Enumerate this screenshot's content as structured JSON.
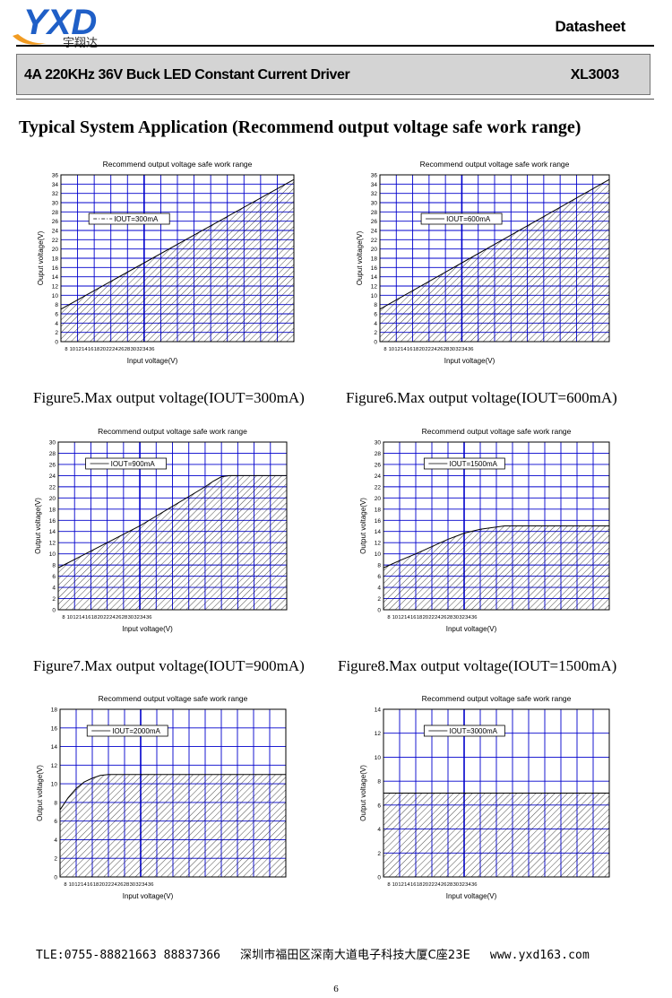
{
  "header": {
    "logo_text": "YXD",
    "logo_subtext": "宇翔达",
    "doc_label": "Datasheet",
    "product_title": "4A 220KHz 36V Buck LED Constant Current Driver",
    "part_number": "XL3003"
  },
  "section_title": "Typical System Application (Recommend output voltage safe work range)",
  "captions": [
    "Figure5.Max output voltage(IOUT=300mA)",
    "Figure6.Max output voltage(IOUT=600mA)",
    "Figure7.Max output voltage(IOUT=900mA)",
    "Figure8.Max output voltage(IOUT=1500mA)"
  ],
  "chart_data": [
    {
      "type": "area",
      "title": "Recommend output voltage safe work range",
      "xlabel": "Input voltage(V)",
      "ylabel": "Ouput voltage(V)",
      "legend": "IOUT=300mA",
      "legend_style": "dashdot",
      "legend_position": "top-left",
      "grid": true,
      "xlim": [
        8,
        36
      ],
      "ylim": [
        0,
        36
      ],
      "yticks_step": 2,
      "x": [
        8,
        36
      ],
      "y": [
        7,
        35
      ]
    },
    {
      "type": "area",
      "title": "Recommend output voltage safe work range",
      "xlabel": "Input voltage(V)",
      "ylabel": "Ouput voltage(V)",
      "legend": "IOUT=600mA",
      "legend_style": "solid",
      "legend_position": "top-center",
      "grid": true,
      "xlim": [
        8,
        36
      ],
      "ylim": [
        0,
        36
      ],
      "yticks_step": 2,
      "x": [
        8,
        36
      ],
      "y": [
        7,
        35
      ]
    },
    {
      "type": "area",
      "title": "Recommend output voltage safe work range",
      "xlabel": "Input voltage(V)",
      "ylabel": "Output voltage(V)",
      "legend": "IOUT=900mA",
      "legend_style": "solid",
      "legend_position": "top-left",
      "grid": true,
      "xlim": [
        8,
        36
      ],
      "ylim": [
        0,
        30
      ],
      "yticks_step": 2,
      "x": [
        8,
        10,
        14,
        18,
        22,
        26,
        27,
        28,
        29,
        30,
        36
      ],
      "y": [
        7.5,
        9,
        12,
        15,
        18.5,
        22,
        23,
        23.8,
        24,
        24,
        24
      ]
    },
    {
      "type": "area",
      "title": "Recommend output voltage safe work range",
      "xlabel": "Input voltage(V)",
      "ylabel": "Output voltage(V)",
      "legend": "IOUT=1500mA",
      "legend_style": "solid",
      "legend_position": "top-center",
      "grid": true,
      "xlim": [
        8,
        36
      ],
      "ylim": [
        0,
        30
      ],
      "yticks_step": 2,
      "x": [
        8,
        10,
        12,
        14,
        16,
        18,
        20,
        22,
        23,
        24,
        36
      ],
      "y": [
        7.5,
        8.8,
        10,
        11.3,
        12.6,
        13.7,
        14.4,
        14.8,
        15,
        15,
        15
      ]
    },
    {
      "type": "area",
      "title": "Recommend output voltage safe work range",
      "xlabel": "Input voltage(V)",
      "ylabel": "Output voltage(V)",
      "legend": "IOUT=2000mA",
      "legend_style": "solid",
      "legend_position": "top-left",
      "grid": true,
      "xlim": [
        8,
        36
      ],
      "ylim": [
        0,
        18
      ],
      "yticks_step": 2,
      "x": [
        8,
        9,
        10,
        11,
        12,
        13,
        14,
        16,
        36
      ],
      "y": [
        7.2,
        8.5,
        9.5,
        10.2,
        10.6,
        10.9,
        11,
        11,
        11
      ]
    },
    {
      "type": "area",
      "title": "Recommend output voltage safe work range",
      "xlabel": "Input voltage(V)",
      "ylabel": "Output voltage(V)",
      "legend": "IOUT=3000mA",
      "legend_style": "solid",
      "legend_position": "top-center",
      "grid": true,
      "xlim": [
        8,
        36
      ],
      "ylim": [
        0,
        14
      ],
      "yticks_step": 2,
      "x": [
        8,
        36
      ],
      "y": [
        7,
        7
      ]
    }
  ],
  "footer": {
    "phone": "TLE:0755-88821663  88837366",
    "address": "深圳市福田区深南大道电子科技大厦C座23E",
    "website": "www.yxd163.com",
    "page_number": "6"
  },
  "colors": {
    "grid": "#0000cc",
    "hatch": "#000000",
    "title_bar_bg": "#d4d4d4",
    "logo_blue": "#1f5fc7",
    "logo_orange": "#f19b22"
  }
}
